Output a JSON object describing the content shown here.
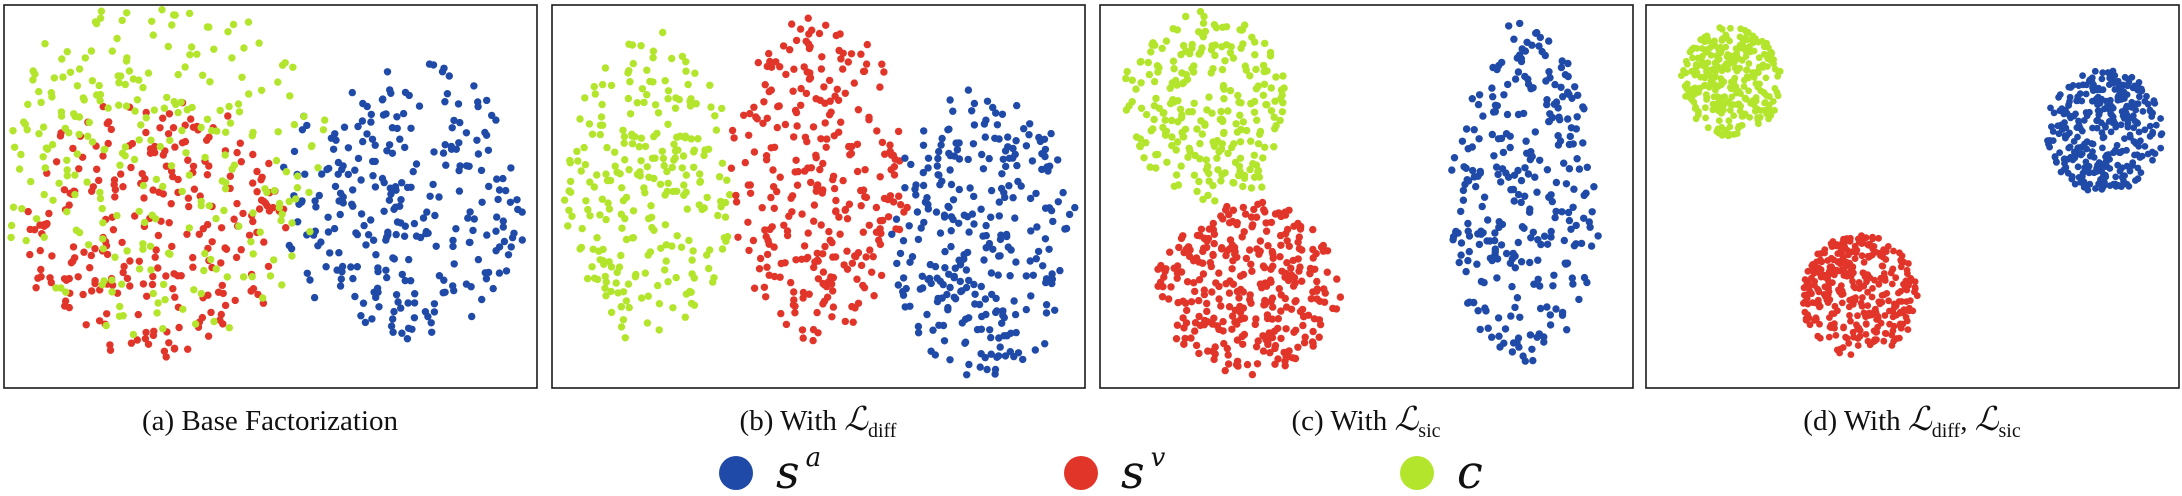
{
  "colors": {
    "s_a": "#1f4aa8",
    "s_v": "#e2352a",
    "c": "#b2e52c"
  },
  "legend": [
    {
      "key": "s_a",
      "base": "s",
      "sup": "a",
      "color": "#1f4aa8"
    },
    {
      "key": "s_v",
      "base": "s",
      "sup": "v",
      "color": "#e2352a"
    },
    {
      "key": "c",
      "base": "c",
      "sup": "",
      "color": "#b2e52c"
    }
  ],
  "chart_data": [
    {
      "type": "scatter",
      "caption": {
        "prefix": "(a) Base Factorization",
        "loss1": "",
        "loss2": ""
      },
      "series": [
        {
          "key": "s_a",
          "clusters": [
            {
              "cx": 0.78,
              "cy": 0.52,
              "rx": 0.19,
              "ry": 0.36,
              "n": 250,
              "shape": "blob"
            },
            {
              "cx": 0.58,
              "cy": 0.5,
              "rx": 0.06,
              "ry": 0.25,
              "n": 30,
              "shape": "blob"
            }
          ]
        },
        {
          "key": "s_v",
          "clusters": [
            {
              "cx": 0.28,
              "cy": 0.58,
              "rx": 0.24,
              "ry": 0.34,
              "n": 260,
              "shape": "blob"
            }
          ]
        },
        {
          "key": "c",
          "clusters": [
            {
              "cx": 0.3,
              "cy": 0.42,
              "rx": 0.3,
              "ry": 0.45,
              "n": 280,
              "shape": "blob"
            }
          ]
        }
      ]
    },
    {
      "type": "scatter",
      "caption": {
        "prefix": "(b) With ",
        "loss1": "diff",
        "loss2": ""
      },
      "series": [
        {
          "key": "c",
          "clusters": [
            {
              "cx": 0.18,
              "cy": 0.48,
              "rx": 0.16,
              "ry": 0.4,
              "n": 260,
              "shape": "blob"
            }
          ]
        },
        {
          "key": "s_v",
          "clusters": [
            {
              "cx": 0.5,
              "cy": 0.44,
              "rx": 0.16,
              "ry": 0.42,
              "n": 300,
              "shape": "blob"
            }
          ]
        },
        {
          "key": "s_a",
          "clusters": [
            {
              "cx": 0.81,
              "cy": 0.6,
              "rx": 0.17,
              "ry": 0.37,
              "n": 290,
              "shape": "blob"
            }
          ]
        }
      ]
    },
    {
      "type": "scatter",
      "caption": {
        "prefix": "(c) With ",
        "loss1": "sic",
        "loss2": ""
      },
      "series": [
        {
          "key": "c",
          "clusters": [
            {
              "cx": 0.2,
              "cy": 0.27,
              "rx": 0.16,
              "ry": 0.25,
              "n": 260,
              "shape": "blob"
            }
          ]
        },
        {
          "key": "s_v",
          "clusters": [
            {
              "cx": 0.28,
              "cy": 0.74,
              "rx": 0.17,
              "ry": 0.22,
              "n": 330,
              "shape": "blob"
            }
          ]
        },
        {
          "key": "s_a",
          "clusters": [
            {
              "cx": 0.8,
              "cy": 0.5,
              "rx": 0.14,
              "ry": 0.44,
              "n": 290,
              "shape": "blob"
            }
          ]
        }
      ]
    },
    {
      "type": "scatter",
      "caption": {
        "prefix": "(d) With ",
        "loss1": "diff",
        "loss2": "sic"
      },
      "series": [
        {
          "key": "c",
          "clusters": [
            {
              "cx": 0.16,
              "cy": 0.2,
              "rx": 0.095,
              "ry": 0.145,
              "n": 300,
              "shape": "dense"
            }
          ]
        },
        {
          "key": "s_a",
          "clusters": [
            {
              "cx": 0.86,
              "cy": 0.33,
              "rx": 0.11,
              "ry": 0.16,
              "n": 330,
              "shape": "dense"
            }
          ]
        },
        {
          "key": "s_v",
          "clusters": [
            {
              "cx": 0.4,
              "cy": 0.76,
              "rx": 0.11,
              "ry": 0.16,
              "n": 340,
              "shape": "dense"
            }
          ]
        }
      ]
    }
  ]
}
